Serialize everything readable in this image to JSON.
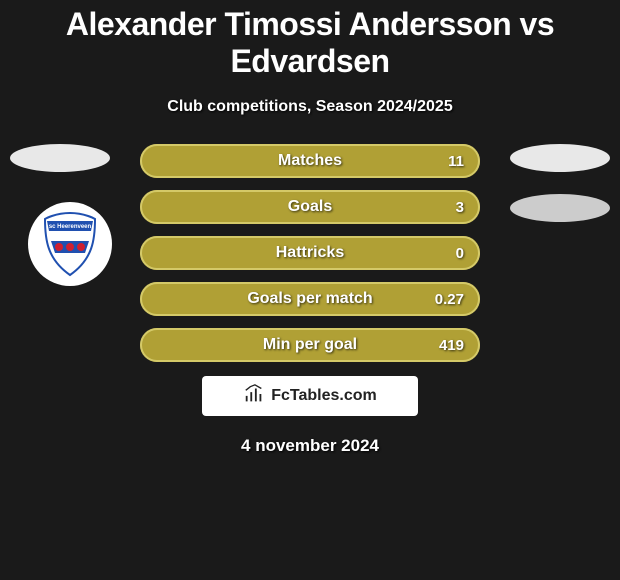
{
  "title": "Alexander Timossi Andersson vs Edvardsen",
  "subtitle": "Club competitions, Season 2024/2025",
  "date": "4 november 2024",
  "logo_text": "FcTables.com",
  "colors": {
    "background": "#1a1a1a",
    "bar_fill": "#b0a035",
    "bar_border_light": "#d4c968",
    "oval_left": "#e8e8e8",
    "oval_right_top": "#e8e8e8",
    "oval_right_bottom": "#cccccc",
    "text": "#ffffff",
    "badge_bg": "#ffffff"
  },
  "bars": [
    {
      "label": "Matches",
      "value": "11"
    },
    {
      "label": "Goals",
      "value": "3"
    },
    {
      "label": "Hattricks",
      "value": "0"
    },
    {
      "label": "Goals per match",
      "value": "0.27"
    },
    {
      "label": "Min per goal",
      "value": "419"
    }
  ],
  "badge": {
    "name": "sc Heerenveen",
    "colors": {
      "blue": "#2050b0",
      "red": "#d02030",
      "white": "#ffffff"
    }
  }
}
